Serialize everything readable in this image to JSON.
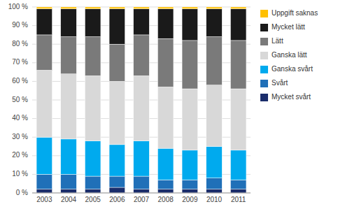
{
  "chart_data": {
    "type": "bar",
    "stacked": true,
    "grid": true,
    "legend": "right",
    "categories": [
      "2003",
      "2004",
      "2005",
      "2006",
      "2007",
      "2008",
      "2009",
      "2010",
      "2011"
    ],
    "series": [
      {
        "name": "Mycket svårt",
        "color": "#1a2d6b",
        "values": [
          2,
          2,
          2,
          3,
          2,
          2,
          2,
          2,
          2
        ]
      },
      {
        "name": "Svårt",
        "color": "#2070b8",
        "values": [
          8,
          8,
          7,
          6,
          7,
          5,
          5,
          6,
          5
        ]
      },
      {
        "name": "Ganska svårt",
        "color": "#00aaee",
        "values": [
          20,
          19,
          19,
          17,
          19,
          17,
          16,
          17,
          16
        ]
      },
      {
        "name": "Ganska lätt",
        "color": "#d8d8d8",
        "values": [
          36,
          35,
          35,
          34,
          35,
          33,
          33,
          33,
          33
        ]
      },
      {
        "name": "Lätt",
        "color": "#7a7a7a",
        "values": [
          19,
          20,
          21,
          20,
          22,
          26,
          26,
          26,
          26
        ]
      },
      {
        "name": "Mycket lätt",
        "color": "#1a1a1a",
        "values": [
          14,
          15,
          15,
          19,
          14,
          16,
          17,
          15,
          17
        ]
      },
      {
        "name": "Uppgift saknas",
        "color": "#ffc000",
        "values": [
          1,
          1,
          1,
          1,
          1,
          1,
          1,
          1,
          1
        ]
      }
    ],
    "ylim": [
      0,
      100
    ],
    "yticks": [
      {
        "value": 0,
        "label": "0 %"
      },
      {
        "value": 10,
        "label": "10 %"
      },
      {
        "value": 20,
        "label": "20 %"
      },
      {
        "value": 30,
        "label": "30 %"
      },
      {
        "value": 40,
        "label": "40 %"
      },
      {
        "value": 50,
        "label": "50 %"
      },
      {
        "value": 60,
        "label": "60 %"
      },
      {
        "value": 70,
        "label": "70 %"
      },
      {
        "value": 80,
        "label": "80 %"
      },
      {
        "value": 90,
        "label": "90 %"
      },
      {
        "value": 100,
        "label": "100 %"
      }
    ]
  }
}
